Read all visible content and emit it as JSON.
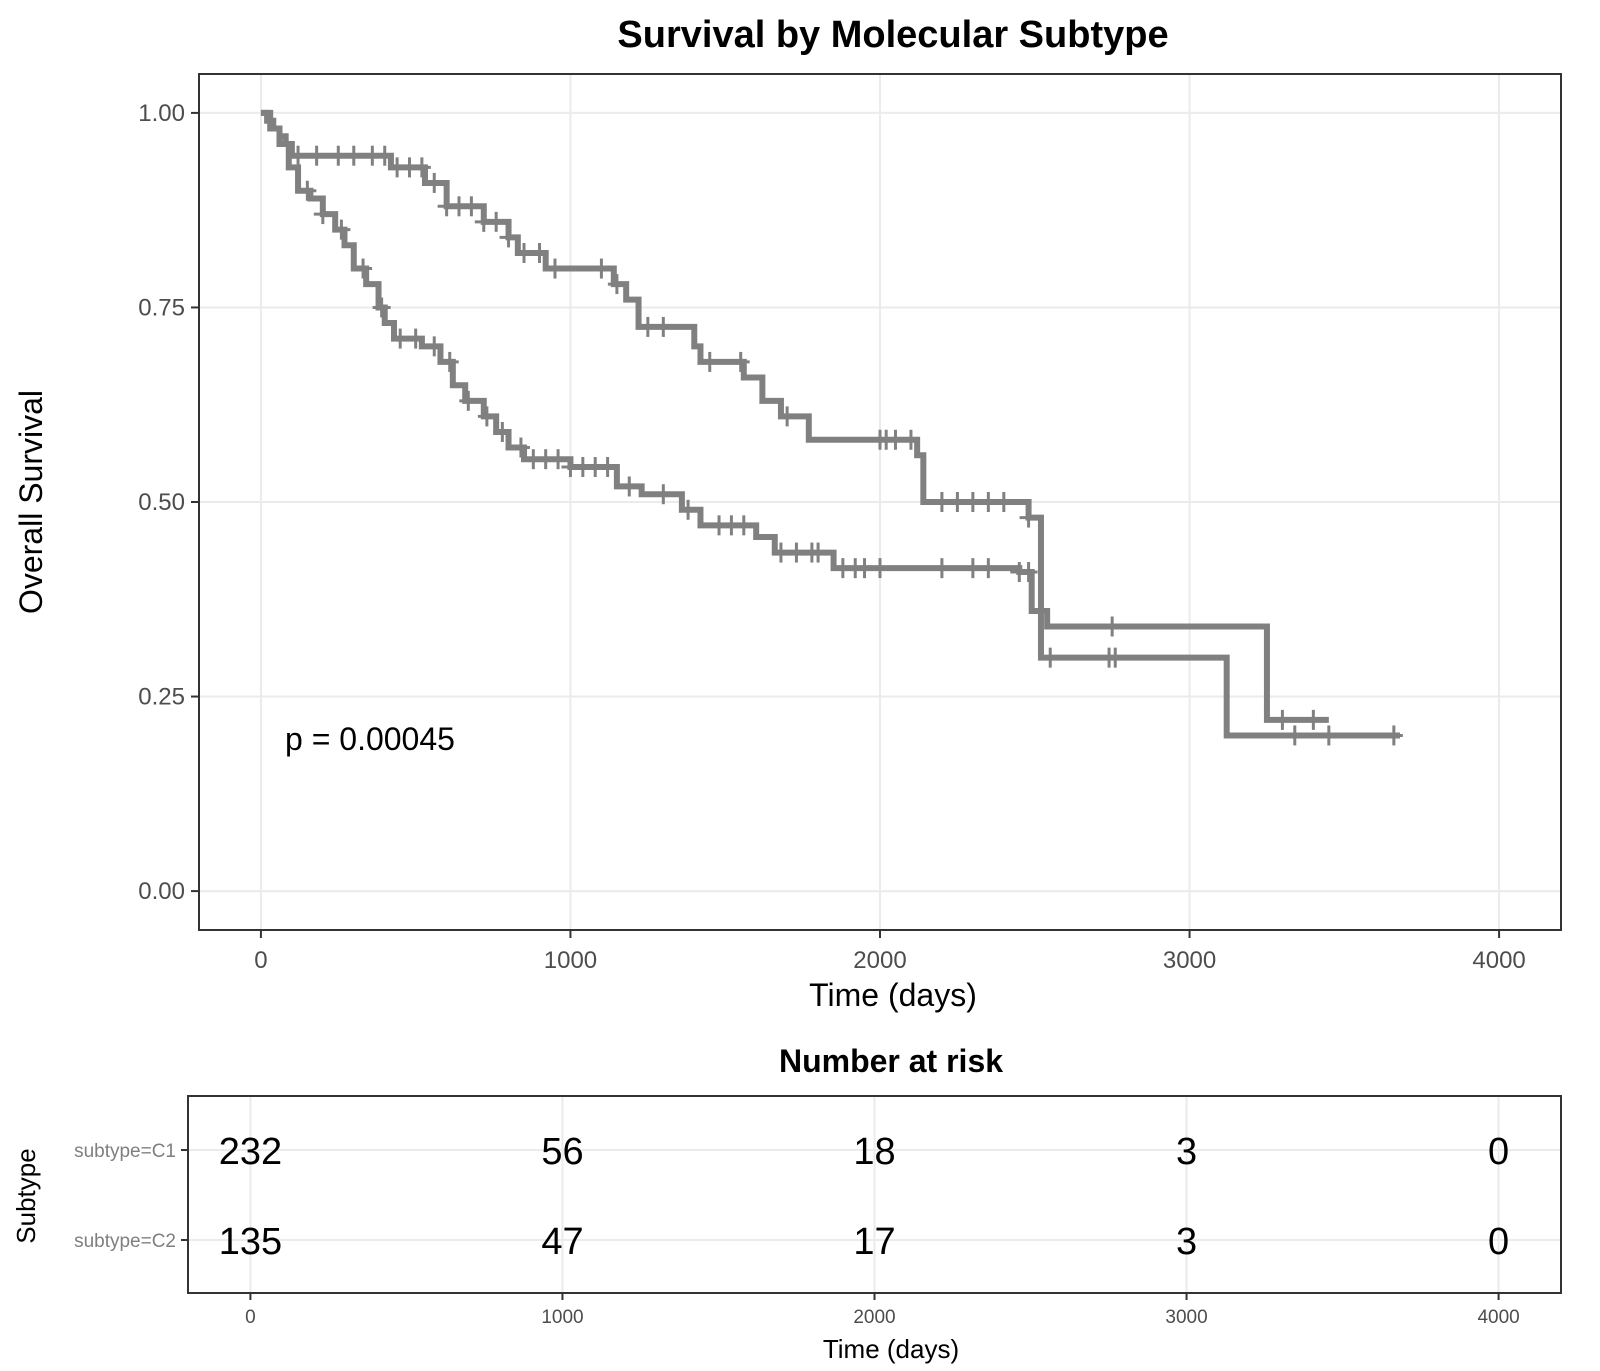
{
  "chart_data": [
    {
      "type": "line",
      "subtype": "kaplan-meier",
      "title": "Survival by Molecular Subtype",
      "xlabel": "Time (days)",
      "ylabel": "Overall Survival",
      "xlim": [
        -200,
        4200
      ],
      "ylim": [
        -0.05,
        1.05
      ],
      "x_ticks": [
        "0",
        "1000",
        "2000",
        "3000",
        "4000"
      ],
      "y_ticks": [
        "0.00",
        "0.25",
        "0.50",
        "0.75",
        "1.00"
      ],
      "grid": true,
      "annotation": "p = 0.00045",
      "line_color": "#808080",
      "series": [
        {
          "strata": "subtype=C1",
          "steps": [
            [
              0,
              1.0
            ],
            [
              20,
              0.99
            ],
            [
              40,
              0.98
            ],
            [
              60,
              0.97
            ],
            [
              80,
              0.96
            ],
            [
              100,
              0.945
            ],
            [
              420,
              0.93
            ],
            [
              530,
              0.91
            ],
            [
              600,
              0.88
            ],
            [
              720,
              0.86
            ],
            [
              800,
              0.84
            ],
            [
              830,
              0.82
            ],
            [
              920,
              0.8
            ],
            [
              1140,
              0.78
            ],
            [
              1180,
              0.76
            ],
            [
              1220,
              0.725
            ],
            [
              1400,
              0.7
            ],
            [
              1420,
              0.68
            ],
            [
              1560,
              0.66
            ],
            [
              1620,
              0.63
            ],
            [
              1680,
              0.61
            ],
            [
              1770,
              0.58
            ],
            [
              2120,
              0.56
            ],
            [
              2140,
              0.5
            ],
            [
              2480,
              0.48
            ],
            [
              2520,
              0.36
            ],
            [
              2540,
              0.34
            ],
            [
              3250,
              0.22
            ],
            [
              3450,
              0.22
            ]
          ],
          "censor_times": [
            120,
            180,
            250,
            300,
            360,
            400,
            440,
            480,
            520,
            560,
            600,
            640,
            680,
            720,
            760,
            800,
            850,
            900,
            950,
            1100,
            1150,
            1250,
            1300,
            1450,
            1550,
            1700,
            2000,
            2020,
            2050,
            2100,
            2200,
            2250,
            2300,
            2350,
            2400,
            2480,
            2750,
            3300,
            3400
          ]
        },
        {
          "strata": "subtype=C2",
          "steps": [
            [
              0,
              1.0
            ],
            [
              30,
              0.98
            ],
            [
              60,
              0.96
            ],
            [
              90,
              0.93
            ],
            [
              120,
              0.9
            ],
            [
              160,
              0.89
            ],
            [
              200,
              0.87
            ],
            [
              240,
              0.85
            ],
            [
              270,
              0.83
            ],
            [
              300,
              0.8
            ],
            [
              340,
              0.78
            ],
            [
              380,
              0.75
            ],
            [
              400,
              0.73
            ],
            [
              430,
              0.71
            ],
            [
              520,
              0.7
            ],
            [
              580,
              0.68
            ],
            [
              620,
              0.65
            ],
            [
              660,
              0.63
            ],
            [
              720,
              0.61
            ],
            [
              760,
              0.59
            ],
            [
              800,
              0.57
            ],
            [
              850,
              0.555
            ],
            [
              1000,
              0.545
            ],
            [
              1150,
              0.52
            ],
            [
              1230,
              0.51
            ],
            [
              1360,
              0.49
            ],
            [
              1420,
              0.47
            ],
            [
              1600,
              0.455
            ],
            [
              1660,
              0.435
            ],
            [
              1850,
              0.415
            ],
            [
              2450,
              0.41
            ],
            [
              2490,
              0.36
            ],
            [
              2520,
              0.3
            ],
            [
              3120,
              0.2
            ],
            [
              3680,
              0.2
            ]
          ],
          "censor_times": [
            150,
            200,
            260,
            330,
            390,
            450,
            500,
            560,
            610,
            670,
            730,
            780,
            840,
            880,
            920,
            960,
            1000,
            1040,
            1080,
            1120,
            1190,
            1300,
            1380,
            1480,
            1520,
            1560,
            1680,
            1730,
            1780,
            1800,
            1880,
            1920,
            1950,
            2000,
            2200,
            2300,
            2350,
            2450,
            2480,
            2550,
            2740,
            2760,
            3340,
            3450,
            3660
          ]
        }
      ]
    },
    {
      "type": "table",
      "title": "Number at risk",
      "xlabel": "Time (days)",
      "ylabel": "Subtype",
      "x_ticks": [
        "0",
        "1000",
        "2000",
        "3000",
        "4000"
      ],
      "rows": [
        {
          "strata": "subtype=C1",
          "values": [
            "232",
            "56",
            "18",
            "3",
            "0"
          ]
        },
        {
          "strata": "subtype=C2",
          "values": [
            "135",
            "47",
            "17",
            "3",
            "0"
          ]
        }
      ]
    }
  ]
}
